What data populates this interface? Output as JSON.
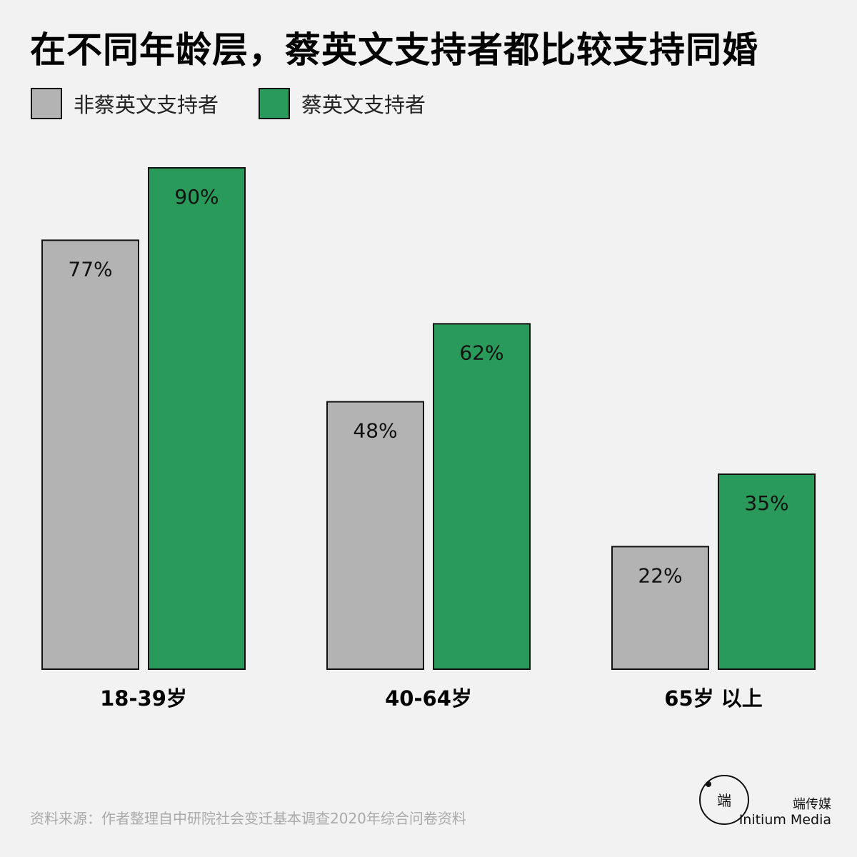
{
  "title": "在不同年龄层，蔡英文支持者都比较支持同婚",
  "legend": [
    {
      "label": "非蔡英文支持者",
      "color": "#b3b3b3"
    },
    {
      "label": "蔡英文支持者",
      "color": "#2a9a5a"
    }
  ],
  "chart_data": {
    "type": "bar",
    "title": "在不同年龄层，蔡英文支持者都比较支持同婚",
    "categories": [
      "18-39岁",
      "40-64岁",
      "65岁 以上"
    ],
    "series": [
      {
        "name": "非蔡英文支持者",
        "values": [
          77,
          48,
          22
        ],
        "labels": [
          "77%",
          "48%",
          "22%"
        ]
      },
      {
        "name": "蔡英文支持者",
        "values": [
          90,
          62,
          35
        ],
        "labels": [
          "90%",
          "62%",
          "35%"
        ]
      }
    ],
    "ylim": [
      0,
      100
    ],
    "unit": "%",
    "grid": false,
    "legend_position": "top-left"
  },
  "source": "资料来源：作者整理自中研院社会变迁基本调查2020年综合问卷资料",
  "brand": {
    "name_cn": "端传媒",
    "name_en": "Initium Media"
  }
}
